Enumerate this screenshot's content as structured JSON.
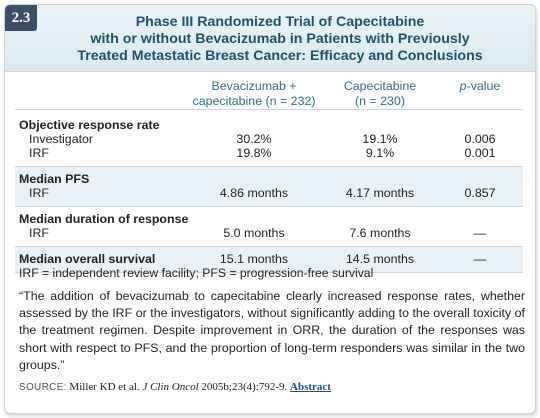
{
  "badge": "2.3",
  "title": {
    "line1": "Phase III Randomized Trial of Capecitabine",
    "line2": "with or without Bevacizumab in Patients with Previously",
    "line3": "Treated Metastatic Breast Cancer: Efficacy and Conclusions"
  },
  "columns": {
    "col2_line1": "Bevacizumab +",
    "col2_line2": "capecitabine (n = 232)",
    "col3_line1": "Capecitabine",
    "col3_line2": "(n = 230)",
    "col4": "p-value"
  },
  "sections": {
    "orr": {
      "title": "Objective response rate",
      "rows": [
        {
          "label": "Investigator",
          "bev": "30.2%",
          "cap": "19.1%",
          "p": "0.006"
        },
        {
          "label": "IRF",
          "bev": "19.8%",
          "cap": "9.1%",
          "p": "0.001"
        }
      ]
    },
    "pfs": {
      "title": "Median PFS",
      "rows": [
        {
          "label": "IRF",
          "bev": "4.86 months",
          "cap": "4.17 months",
          "p": "0.857"
        }
      ]
    },
    "dor": {
      "title": "Median duration of response",
      "rows": [
        {
          "label": "IRF",
          "bev": "5.0 months",
          "cap": "7.6 months",
          "p": "—"
        }
      ]
    },
    "os": {
      "title": "Median overall survival",
      "bev": "15.1 months",
      "cap": "14.5 months",
      "p": "—"
    }
  },
  "footnote": "IRF = independent review facility; PFS = progression-free survival",
  "quote": "“The addition of bevacizumab to capecitabine clearly increased response rates, whether assessed by the IRF or the investigators, without significantly adding to the overall toxicity of the treatment regimen. Despite improvement in ORR, the duration of the responses was short with respect to PFS, and the proportion of long-term responders was similar in the two groups.”",
  "source": {
    "label": "SOURCE:",
    "authors": "Miller KD et al.",
    "journal": "J Clin Oncol",
    "citation": "2005b;23(4):792-9.",
    "link": "Abstract"
  }
}
